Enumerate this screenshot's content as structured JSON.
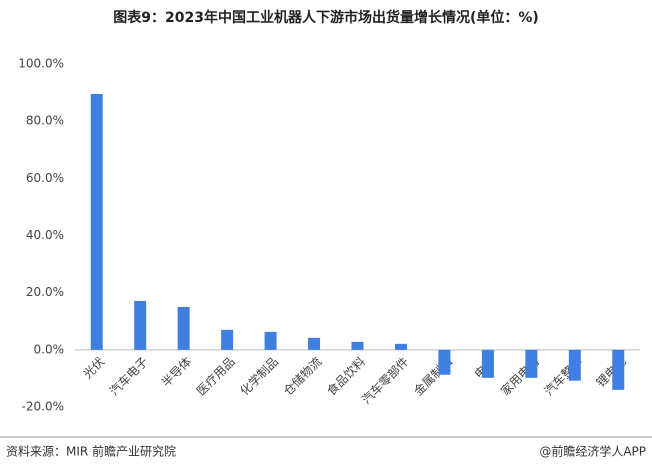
{
  "chart_data": {
    "type": "bar",
    "title": "图表9：2023年中国工业机器人下游市场出货量增长情况(单位：%)",
    "categories": [
      "光伏",
      "汽车电子",
      "半导体",
      "医疗用品",
      "化学制品",
      "仓储物流",
      "食品饮料",
      "汽车零部件",
      "金属制品",
      "电子",
      "家用电器",
      "汽车整车",
      "锂电池"
    ],
    "values": [
      89.5,
      17.1,
      15.0,
      7.0,
      6.3,
      4.2,
      2.8,
      2.1,
      -8.7,
      -9.8,
      -9.8,
      -10.8,
      -14.0
    ],
    "color": "#3f7fe0",
    "ylim": [
      -20,
      100
    ],
    "yticks": [
      {
        "value": -20,
        "label": "-20.0%"
      },
      {
        "value": 0,
        "label": "0.0%"
      },
      {
        "value": 20,
        "label": "20.0%"
      },
      {
        "value": 40,
        "label": "40.0%"
      },
      {
        "value": 60,
        "label": "60.0%"
      },
      {
        "value": 80,
        "label": "80.0%"
      },
      {
        "value": 100,
        "label": "100.0%"
      }
    ],
    "grid": false,
    "source": "资料来源：MIR 前瞻产业研究院",
    "credit": "@前瞻经济学人APP"
  }
}
